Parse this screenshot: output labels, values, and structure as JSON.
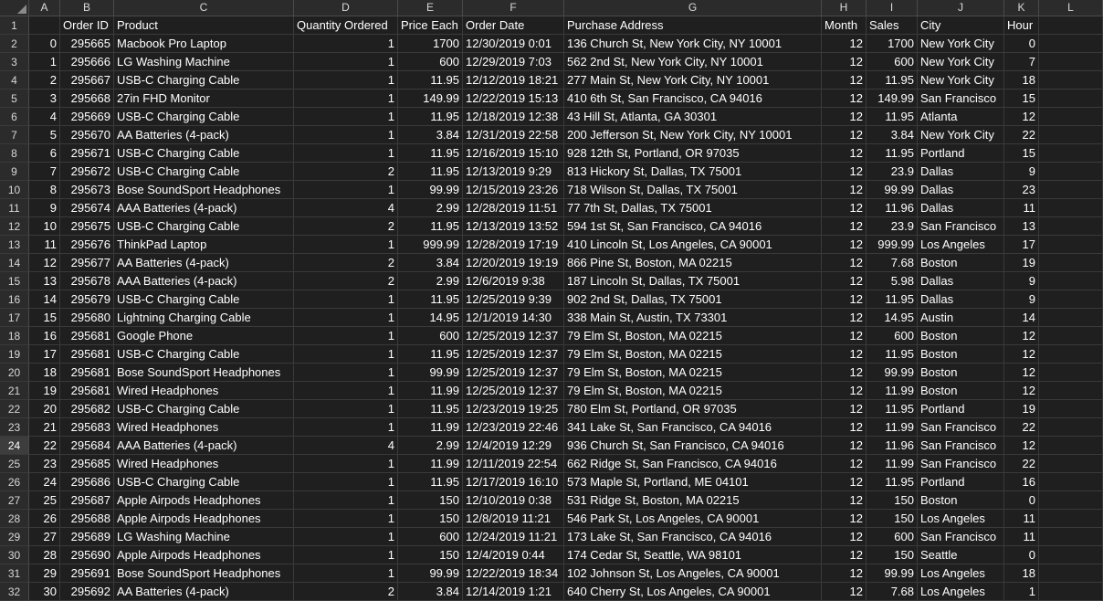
{
  "sheet": {
    "columns": [
      "A",
      "B",
      "C",
      "D",
      "E",
      "F",
      "G",
      "H",
      "I",
      "J",
      "K",
      "L"
    ],
    "selected_row": 24,
    "header": [
      "",
      "Order ID",
      "Product",
      "Quantity Ordered",
      "Price Each",
      "Order Date",
      "Purchase Address",
      "Month",
      "Sales",
      "City",
      "Hour",
      ""
    ],
    "rows": [
      [
        "0",
        "295665",
        "Macbook Pro Laptop",
        "1",
        "1700",
        "12/30/2019 0:01",
        "136 Church St, New York City, NY 10001",
        "12",
        "1700",
        "New York City",
        "0"
      ],
      [
        "1",
        "295666",
        "LG Washing Machine",
        "1",
        "600",
        "12/29/2019 7:03",
        "562 2nd St, New York City, NY 10001",
        "12",
        "600",
        "New York City",
        "7"
      ],
      [
        "2",
        "295667",
        "USB-C Charging Cable",
        "1",
        "11.95",
        "12/12/2019 18:21",
        "277 Main St, New York City, NY 10001",
        "12",
        "11.95",
        "New York City",
        "18"
      ],
      [
        "3",
        "295668",
        "27in FHD Monitor",
        "1",
        "149.99",
        "12/22/2019 15:13",
        "410 6th St, San Francisco, CA 94016",
        "12",
        "149.99",
        "San Francisco",
        "15"
      ],
      [
        "4",
        "295669",
        "USB-C Charging Cable",
        "1",
        "11.95",
        "12/18/2019 12:38",
        "43 Hill St, Atlanta, GA 30301",
        "12",
        "11.95",
        "Atlanta",
        "12"
      ],
      [
        "5",
        "295670",
        "AA Batteries (4-pack)",
        "1",
        "3.84",
        "12/31/2019 22:58",
        "200 Jefferson St, New York City, NY 10001",
        "12",
        "3.84",
        "New York City",
        "22"
      ],
      [
        "6",
        "295671",
        "USB-C Charging Cable",
        "1",
        "11.95",
        "12/16/2019 15:10",
        "928 12th St, Portland, OR 97035",
        "12",
        "11.95",
        "Portland",
        "15"
      ],
      [
        "7",
        "295672",
        "USB-C Charging Cable",
        "2",
        "11.95",
        "12/13/2019 9:29",
        "813 Hickory St, Dallas, TX 75001",
        "12",
        "23.9",
        "Dallas",
        "9"
      ],
      [
        "8",
        "295673",
        "Bose SoundSport Headphones",
        "1",
        "99.99",
        "12/15/2019 23:26",
        "718 Wilson St, Dallas, TX 75001",
        "12",
        "99.99",
        "Dallas",
        "23"
      ],
      [
        "9",
        "295674",
        "AAA Batteries (4-pack)",
        "4",
        "2.99",
        "12/28/2019 11:51",
        "77 7th St, Dallas, TX 75001",
        "12",
        "11.96",
        "Dallas",
        "11"
      ],
      [
        "10",
        "295675",
        "USB-C Charging Cable",
        "2",
        "11.95",
        "12/13/2019 13:52",
        "594 1st St, San Francisco, CA 94016",
        "12",
        "23.9",
        "San Francisco",
        "13"
      ],
      [
        "11",
        "295676",
        "ThinkPad Laptop",
        "1",
        "999.99",
        "12/28/2019 17:19",
        "410 Lincoln St, Los Angeles, CA 90001",
        "12",
        "999.99",
        "Los Angeles",
        "17"
      ],
      [
        "12",
        "295677",
        "AA Batteries (4-pack)",
        "2",
        "3.84",
        "12/20/2019 19:19",
        "866 Pine St, Boston, MA 02215",
        "12",
        "7.68",
        "Boston",
        "19"
      ],
      [
        "13",
        "295678",
        "AAA Batteries (4-pack)",
        "2",
        "2.99",
        "12/6/2019 9:38",
        "187 Lincoln St, Dallas, TX 75001",
        "12",
        "5.98",
        "Dallas",
        "9"
      ],
      [
        "14",
        "295679",
        "USB-C Charging Cable",
        "1",
        "11.95",
        "12/25/2019 9:39",
        "902 2nd St, Dallas, TX 75001",
        "12",
        "11.95",
        "Dallas",
        "9"
      ],
      [
        "15",
        "295680",
        "Lightning Charging Cable",
        "1",
        "14.95",
        "12/1/2019 14:30",
        "338 Main St, Austin, TX 73301",
        "12",
        "14.95",
        "Austin",
        "14"
      ],
      [
        "16",
        "295681",
        "Google Phone",
        "1",
        "600",
        "12/25/2019 12:37",
        "79 Elm St, Boston, MA 02215",
        "12",
        "600",
        "Boston",
        "12"
      ],
      [
        "17",
        "295681",
        "USB-C Charging Cable",
        "1",
        "11.95",
        "12/25/2019 12:37",
        "79 Elm St, Boston, MA 02215",
        "12",
        "11.95",
        "Boston",
        "12"
      ],
      [
        "18",
        "295681",
        "Bose SoundSport Headphones",
        "1",
        "99.99",
        "12/25/2019 12:37",
        "79 Elm St, Boston, MA 02215",
        "12",
        "99.99",
        "Boston",
        "12"
      ],
      [
        "19",
        "295681",
        "Wired Headphones",
        "1",
        "11.99",
        "12/25/2019 12:37",
        "79 Elm St, Boston, MA 02215",
        "12",
        "11.99",
        "Boston",
        "12"
      ],
      [
        "20",
        "295682",
        "USB-C Charging Cable",
        "1",
        "11.95",
        "12/23/2019 19:25",
        "780 Elm St, Portland, OR 97035",
        "12",
        "11.95",
        "Portland",
        "19"
      ],
      [
        "21",
        "295683",
        "Wired Headphones",
        "1",
        "11.99",
        "12/23/2019 22:46",
        "341 Lake St, San Francisco, CA 94016",
        "12",
        "11.99",
        "San Francisco",
        "22"
      ],
      [
        "22",
        "295684",
        "AAA Batteries (4-pack)",
        "4",
        "2.99",
        "12/4/2019 12:29",
        "936 Church St, San Francisco, CA 94016",
        "12",
        "11.96",
        "San Francisco",
        "12"
      ],
      [
        "23",
        "295685",
        "Wired Headphones",
        "1",
        "11.99",
        "12/11/2019 22:54",
        "662 Ridge St, San Francisco, CA 94016",
        "12",
        "11.99",
        "San Francisco",
        "22"
      ],
      [
        "24",
        "295686",
        "USB-C Charging Cable",
        "1",
        "11.95",
        "12/17/2019 16:10",
        "573 Maple St, Portland, ME 04101",
        "12",
        "11.95",
        "Portland",
        "16"
      ],
      [
        "25",
        "295687",
        "Apple Airpods Headphones",
        "1",
        "150",
        "12/10/2019 0:38",
        "531 Ridge St, Boston, MA 02215",
        "12",
        "150",
        "Boston",
        "0"
      ],
      [
        "26",
        "295688",
        "Apple Airpods Headphones",
        "1",
        "150",
        "12/8/2019 11:21",
        "546 Park St, Los Angeles, CA 90001",
        "12",
        "150",
        "Los Angeles",
        "11"
      ],
      [
        "27",
        "295689",
        "LG Washing Machine",
        "1",
        "600",
        "12/24/2019 11:21",
        "173 Lake St, San Francisco, CA 94016",
        "12",
        "600",
        "San Francisco",
        "11"
      ],
      [
        "28",
        "295690",
        "Apple Airpods Headphones",
        "1",
        "150",
        "12/4/2019 0:44",
        "174 Cedar St, Seattle, WA 98101",
        "12",
        "150",
        "Seattle",
        "0"
      ],
      [
        "29",
        "295691",
        "Bose SoundSport Headphones",
        "1",
        "99.99",
        "12/22/2019 18:34",
        "102 Johnson St, Los Angeles, CA 90001",
        "12",
        "99.99",
        "Los Angeles",
        "18"
      ],
      [
        "30",
        "295692",
        "AA Batteries (4-pack)",
        "2",
        "3.84",
        "12/14/2019 1:21",
        "640 Cherry St, Los Angeles, CA 90001",
        "12",
        "7.68",
        "Los Angeles",
        "1"
      ]
    ]
  }
}
